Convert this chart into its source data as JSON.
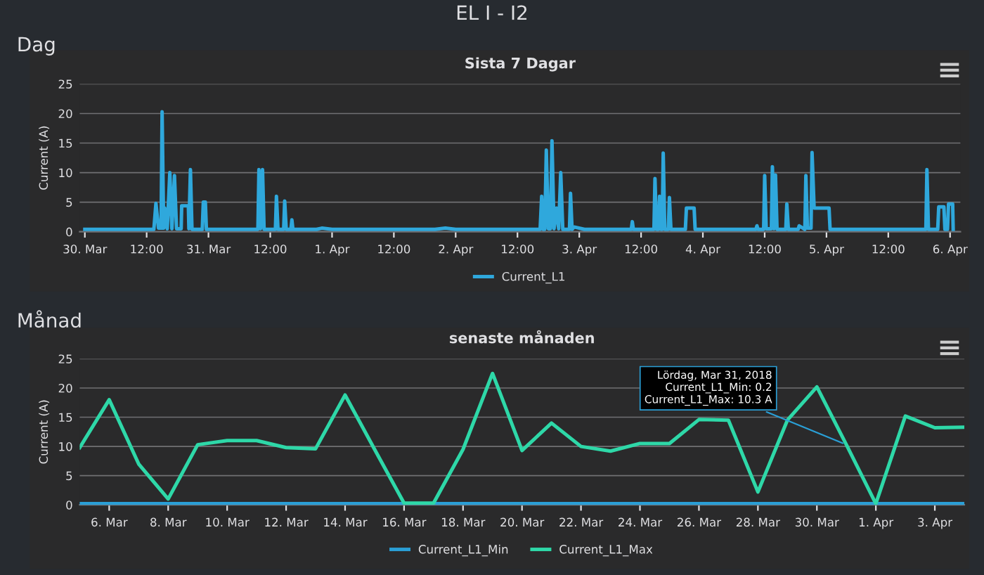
{
  "chart_data": [
    {
      "type": "line",
      "title": "Sista 7 Dagar",
      "ylabel": "Current (A)",
      "annotations": [
        "EL I - I2",
        "Dag"
      ],
      "series": [
        {
          "name": "Current_L1",
          "color": "#2fa8dc",
          "x": [
            "2018-03-30T00:00",
            "2018-03-30T13:24",
            "2018-03-30T13:48",
            "2018-03-30T14:18",
            "2018-03-30T14:48",
            "2018-03-30T15:00",
            "2018-03-30T15:18",
            "2018-03-30T15:30",
            "2018-03-30T16:00",
            "2018-03-30T16:30",
            "2018-03-30T16:54",
            "2018-03-30T17:24",
            "2018-03-30T17:48",
            "2018-03-30T18:42",
            "2018-03-30T18:48",
            "2018-03-30T20:06",
            "2018-03-30T20:12",
            "2018-03-30T20:30",
            "2018-03-30T20:48",
            "2018-03-30T22:48",
            "2018-03-30T23:00",
            "2018-03-30T23:24",
            "2018-03-30T23:36",
            "2018-03-31T09:36",
            "2018-03-31T09:48",
            "2018-03-31T10:06",
            "2018-03-31T10:30",
            "2018-03-31T10:48",
            "2018-03-31T13:00",
            "2018-03-31T13:12",
            "2018-03-31T13:30",
            "2018-03-31T14:36",
            "2018-03-31T14:48",
            "2018-03-31T15:06",
            "2018-03-31T16:00",
            "2018-03-31T16:12",
            "2018-03-31T16:24",
            "2018-03-31T21:00",
            "2018-03-31T22:00",
            "2018-04-01T00:00",
            "2018-04-01T20:00",
            "2018-04-01T22:00",
            "2018-04-02T00:00",
            "2018-04-02T16:24",
            "2018-04-02T16:42",
            "2018-04-02T17:00",
            "2018-04-02T17:18",
            "2018-04-02T17:36",
            "2018-04-02T18:00",
            "2018-04-02T18:24",
            "2018-04-02T18:42",
            "2018-04-02T19:06",
            "2018-04-02T19:36",
            "2018-04-02T20:00",
            "2018-04-02T20:24",
            "2018-04-02T20:48",
            "2018-04-02T22:06",
            "2018-04-02T22:18",
            "2018-04-02T22:36",
            "2018-04-02T23:00",
            "2018-04-03T01:00",
            "2018-04-03T10:06",
            "2018-04-03T10:18",
            "2018-04-03T10:30",
            "2018-04-03T14:30",
            "2018-04-03T14:42",
            "2018-04-03T15:00",
            "2018-04-03T15:24",
            "2018-04-03T15:36",
            "2018-04-03T15:54",
            "2018-04-03T16:06",
            "2018-04-03T16:18",
            "2018-04-03T16:36",
            "2018-04-03T17:18",
            "2018-04-03T17:30",
            "2018-04-03T17:48",
            "2018-04-03T20:36",
            "2018-04-03T20:48",
            "2018-04-03T22:18",
            "2018-04-03T22:30",
            "2018-04-04T10:18",
            "2018-04-04T10:30",
            "2018-04-04T10:42",
            "2018-04-04T11:48",
            "2018-04-04T12:00",
            "2018-04-04T12:18",
            "2018-04-04T13:18",
            "2018-04-04T13:30",
            "2018-04-04T13:48",
            "2018-04-04T14:06",
            "2018-04-04T14:24",
            "2018-04-04T16:06",
            "2018-04-04T16:18",
            "2018-04-04T16:36",
            "2018-04-04T18:30",
            "2018-04-04T18:42",
            "2018-04-04T19:48",
            "2018-04-04T20:00",
            "2018-04-04T20:18",
            "2018-04-04T21:00",
            "2018-04-04T21:12",
            "2018-04-04T21:36",
            "2018-04-05T00:30",
            "2018-04-05T00:42",
            "2018-04-05T19:18",
            "2018-04-05T19:30",
            "2018-04-05T19:48",
            "2018-04-05T21:36",
            "2018-04-05T21:48",
            "2018-04-05T22:48",
            "2018-04-05T23:00",
            "2018-04-05T23:30",
            "2018-04-05T23:42",
            "2018-04-06T00:30",
            "2018-04-06T00:36"
          ],
          "values": [
            0.4,
            0.4,
            4.8,
            0.6,
            0.6,
            20.3,
            0.6,
            4,
            0.5,
            10,
            0.5,
            9.5,
            0.5,
            0.5,
            4.4,
            4.4,
            0.5,
            10.5,
            0.4,
            0.4,
            5,
            5,
            0.4,
            0.4,
            10.5,
            0.5,
            10.5,
            0.4,
            0.4,
            6,
            0.4,
            0.4,
            5.2,
            0.4,
            0.4,
            2,
            0.4,
            0.4,
            0.6,
            0.4,
            0.4,
            0.6,
            0.4,
            0.4,
            6,
            0.4,
            0.4,
            13.8,
            0.5,
            0.5,
            15.4,
            0.5,
            4,
            0.5,
            10,
            0.4,
            0.4,
            6.5,
            0.4,
            0.8,
            0.4,
            0.4,
            1.7,
            0.4,
            0.4,
            9,
            0.4,
            0.4,
            6,
            0.4,
            0.4,
            13.3,
            0.4,
            0.4,
            5.8,
            0.4,
            0.4,
            4,
            4,
            0.4,
            0.4,
            1,
            0.4,
            0.4,
            9.5,
            0.5,
            0.5,
            11,
            0.5,
            9.6,
            0.4,
            0.4,
            4.7,
            0.4,
            0.4,
            1,
            0.4,
            9.5,
            0.6,
            0.6,
            13.4,
            4,
            4,
            0.4,
            0.4,
            10.5,
            0.4,
            0.4,
            4.2,
            4.2,
            0.4,
            0.4,
            4.7,
            4.7,
            0.4
          ]
        }
      ],
      "xlim": [
        "2018-03-29T23:00",
        "2018-04-06T02:00"
      ],
      "xticks": [
        {
          "value": "2018-03-30T00:00",
          "label": "30. Mar"
        },
        {
          "value": "2018-03-30T12:00",
          "label": "12:00"
        },
        {
          "value": "2018-03-31T00:00",
          "label": "31. Mar"
        },
        {
          "value": "2018-03-31T12:00",
          "label": "12:00"
        },
        {
          "value": "2018-04-01T00:00",
          "label": "1. Apr"
        },
        {
          "value": "2018-04-01T12:00",
          "label": "12:00"
        },
        {
          "value": "2018-04-02T00:00",
          "label": "2. Apr"
        },
        {
          "value": "2018-04-02T12:00",
          "label": "12:00"
        },
        {
          "value": "2018-04-03T00:00",
          "label": "3. Apr"
        },
        {
          "value": "2018-04-03T12:00",
          "label": "12:00"
        },
        {
          "value": "2018-04-04T00:00",
          "label": "4. Apr"
        },
        {
          "value": "2018-04-04T12:00",
          "label": "12:00"
        },
        {
          "value": "2018-04-05T00:00",
          "label": "5. Apr"
        },
        {
          "value": "2018-04-05T12:00",
          "label": "12:00"
        },
        {
          "value": "2018-04-06T00:00",
          "label": "6. Apr"
        }
      ],
      "ylim": [
        0,
        25
      ],
      "yticks": [
        0,
        5,
        10,
        15,
        20,
        25
      ],
      "grid": "y",
      "legend": "bottom"
    },
    {
      "type": "line",
      "title": "senaste månaden",
      "ylabel": "Current (A)",
      "annotations": [
        "Månad",
        {
          "text": "Lördag, Mar 31, 2018\nCurrent_L1_Min: 0.2\nCurrent_L1_Max: 10.3 A",
          "x": "2018-03-31",
          "y": 10.3
        }
      ],
      "x": [
        "2018-03-05",
        "2018-03-06",
        "2018-03-07",
        "2018-03-08",
        "2018-03-09",
        "2018-03-10",
        "2018-03-11",
        "2018-03-12",
        "2018-03-13",
        "2018-03-14",
        "2018-03-15",
        "2018-03-16",
        "2018-03-17",
        "2018-03-18",
        "2018-03-19",
        "2018-03-20",
        "2018-03-21",
        "2018-03-22",
        "2018-03-23",
        "2018-03-24",
        "2018-03-25",
        "2018-03-26",
        "2018-03-27",
        "2018-03-28",
        "2018-03-29",
        "2018-03-30",
        "2018-03-31",
        "2018-04-01",
        "2018-04-02",
        "2018-04-03",
        "2018-04-04"
      ],
      "series": [
        {
          "name": "Current_L1_Min",
          "color": "#2a9fd6",
          "values": [
            0.2,
            0.2,
            0.2,
            0.2,
            0.2,
            0.2,
            0.2,
            0.2,
            0.2,
            0.2,
            0.2,
            0.2,
            0.2,
            0.2,
            0.2,
            0.2,
            0.2,
            0.2,
            0.2,
            0.2,
            0.2,
            0.2,
            0.2,
            0.2,
            0.2,
            0.2,
            0.2,
            0.2,
            0.2,
            0.2,
            0.2
          ]
        },
        {
          "name": "Current_L1_Max",
          "color": "#2ed8a8",
          "values": [
            9.8,
            18,
            7,
            1,
            10.3,
            11,
            11,
            9.8,
            9.6,
            18.8,
            9.5,
            0.3,
            0.3,
            9.5,
            22.5,
            9.3,
            14,
            10,
            9.2,
            10.5,
            10.5,
            14.6,
            14.5,
            2.2,
            14.5,
            20.2,
            10.3,
            0.2,
            15.2,
            13.2,
            13.3
          ]
        }
      ],
      "xlim": [
        "2018-03-05",
        "2018-04-04"
      ],
      "xticks": [
        {
          "value": "2018-03-06",
          "label": "6. Mar"
        },
        {
          "value": "2018-03-08",
          "label": "8. Mar"
        },
        {
          "value": "2018-03-10",
          "label": "10. Mar"
        },
        {
          "value": "2018-03-12",
          "label": "12. Mar"
        },
        {
          "value": "2018-03-14",
          "label": "14. Mar"
        },
        {
          "value": "2018-03-16",
          "label": "16. Mar"
        },
        {
          "value": "2018-03-18",
          "label": "18. Mar"
        },
        {
          "value": "2018-03-20",
          "label": "20. Mar"
        },
        {
          "value": "2018-03-22",
          "label": "22. Mar"
        },
        {
          "value": "2018-03-24",
          "label": "24. Mar"
        },
        {
          "value": "2018-03-26",
          "label": "26. Mar"
        },
        {
          "value": "2018-03-28",
          "label": "28. Mar"
        },
        {
          "value": "2018-03-30",
          "label": "30. Mar"
        },
        {
          "value": "2018-04-01",
          "label": "1. Apr"
        },
        {
          "value": "2018-04-03",
          "label": "3. Apr"
        }
      ],
      "ylim": [
        0,
        25
      ],
      "yticks": [
        0,
        5,
        10,
        15,
        20,
        25
      ],
      "grid": "y",
      "legend": "bottom"
    }
  ]
}
